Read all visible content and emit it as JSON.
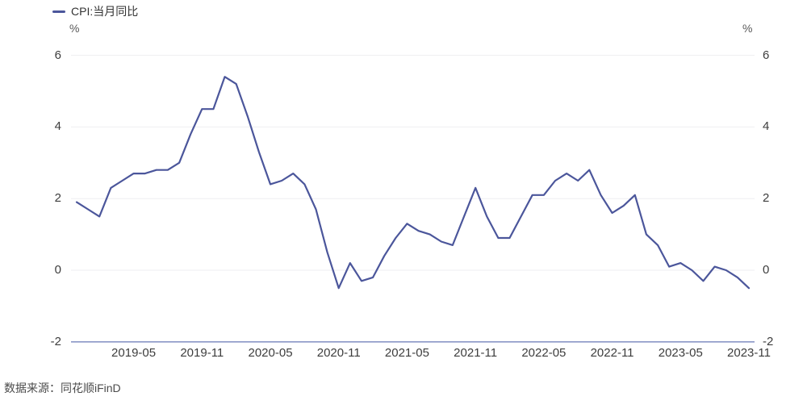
{
  "chart_data": {
    "type": "line",
    "title": "",
    "legend": "CPI:当月同比",
    "unit": "%",
    "x": [
      "2018-12",
      "2019-01",
      "2019-02",
      "2019-03",
      "2019-04",
      "2019-05",
      "2019-06",
      "2019-07",
      "2019-08",
      "2019-09",
      "2019-10",
      "2019-11",
      "2019-12",
      "2020-01",
      "2020-02",
      "2020-03",
      "2020-04",
      "2020-05",
      "2020-06",
      "2020-07",
      "2020-08",
      "2020-09",
      "2020-10",
      "2020-11",
      "2020-12",
      "2021-01",
      "2021-02",
      "2021-03",
      "2021-04",
      "2021-05",
      "2021-06",
      "2021-07",
      "2021-08",
      "2021-09",
      "2021-10",
      "2021-11",
      "2021-12",
      "2022-01",
      "2022-02",
      "2022-03",
      "2022-04",
      "2022-05",
      "2022-06",
      "2022-07",
      "2022-08",
      "2022-09",
      "2022-10",
      "2022-11",
      "2022-12",
      "2023-01",
      "2023-02",
      "2023-03",
      "2023-04",
      "2023-05",
      "2023-06",
      "2023-07",
      "2023-08",
      "2023-09",
      "2023-10",
      "2023-11"
    ],
    "values": [
      1.9,
      1.7,
      1.5,
      2.3,
      2.5,
      2.7,
      2.7,
      2.8,
      2.8,
      3.0,
      3.8,
      4.5,
      4.5,
      5.4,
      5.2,
      4.3,
      3.3,
      2.4,
      2.5,
      2.7,
      2.4,
      1.7,
      0.5,
      -0.5,
      0.2,
      -0.3,
      -0.2,
      0.4,
      0.9,
      1.3,
      1.1,
      1.0,
      0.8,
      0.7,
      1.5,
      2.3,
      1.5,
      0.9,
      0.9,
      1.5,
      2.1,
      2.1,
      2.5,
      2.7,
      2.5,
      2.8,
      2.1,
      1.6,
      1.8,
      2.1,
      1.0,
      0.7,
      0.1,
      0.2,
      0.0,
      -0.3,
      0.1,
      0.0,
      -0.2,
      -0.5
    ],
    "x_tick_labels": [
      "2019-05",
      "2019-11",
      "2020-05",
      "2020-11",
      "2021-05",
      "2021-11",
      "2022-05",
      "2022-11",
      "2023-05",
      "2023-11"
    ],
    "y_ticks": [
      6,
      4,
      2,
      0,
      -2
    ],
    "ylim": [
      -2,
      6
    ],
    "grid": "horizontal",
    "legend_position": "top-left",
    "colors": {
      "line": "#4b569b",
      "axis": "#8b97c6",
      "grid": "#eeeef1"
    }
  },
  "footer": {
    "source": "数据来源：同花顺iFinD"
  }
}
